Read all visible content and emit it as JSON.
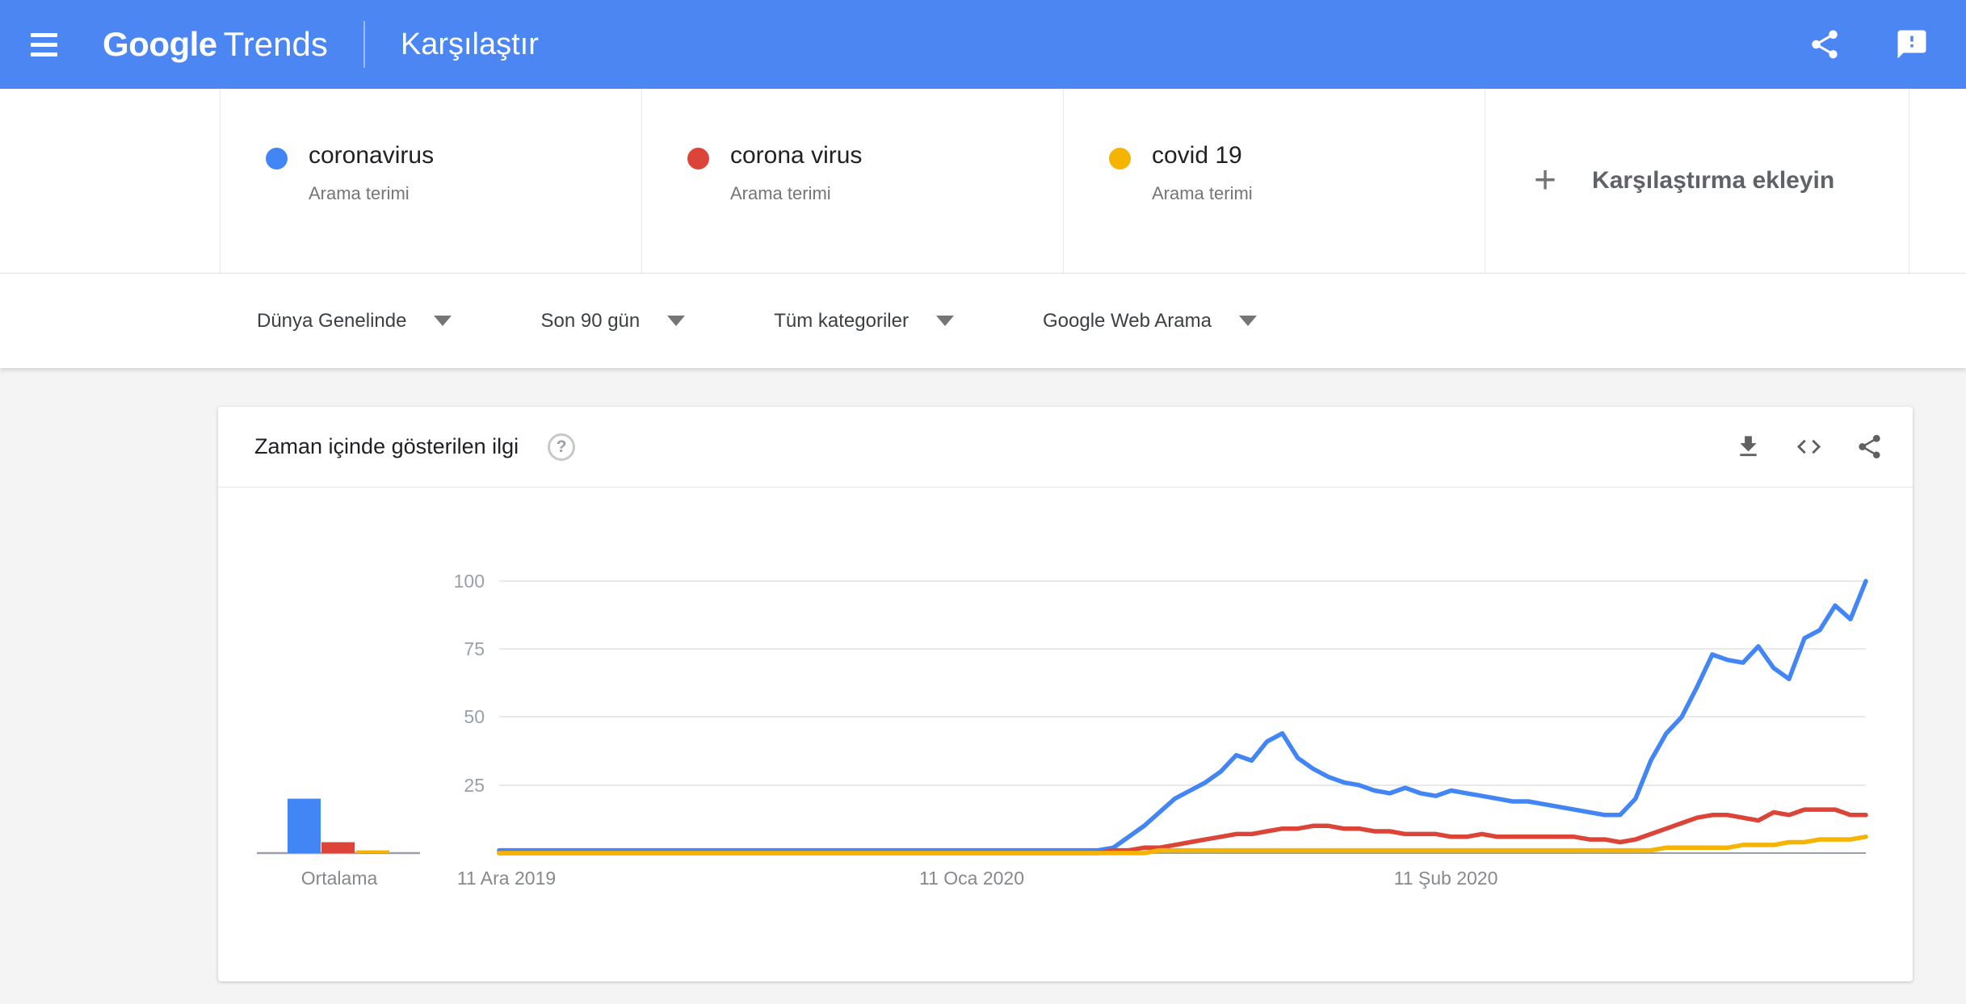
{
  "header": {
    "logo_primary": "Google",
    "logo_secondary": "Trends",
    "page_title": "Karşılaştır",
    "icons": {
      "menu": "hamburger-menu-icon",
      "share": "share-icon",
      "feedback": "feedback-icon"
    }
  },
  "compare_terms": [
    {
      "term": "coronavirus",
      "type_label": "Arama terimi",
      "color": "#4285F4"
    },
    {
      "term": "corona virus",
      "type_label": "Arama terimi",
      "color": "#DB4437"
    },
    {
      "term": "covid 19",
      "type_label": "Arama terimi",
      "color": "#F4B400"
    }
  ],
  "add_comparison": {
    "plus_glyph": "+",
    "label": "Karşılaştırma ekleyin"
  },
  "filters": [
    {
      "label": "Dünya Genelinde"
    },
    {
      "label": "Son 90 gün"
    },
    {
      "label": "Tüm kategoriler"
    },
    {
      "label": "Google Web Arama"
    }
  ],
  "chart_card": {
    "title": "Zaman içinde gösterilen ilgi",
    "help_glyph": "?",
    "icons": {
      "download": "download-icon",
      "embed": "embed-code-icon",
      "share": "share-icon"
    }
  },
  "chart_data": {
    "type": "line",
    "title": "Zaman içinde gösterilen ilgi",
    "n_points": 90,
    "x_tick_labels": [
      "11 Ara 2019",
      "11 Oca 2020",
      "11 Şub 2020"
    ],
    "y_ticks": [
      25,
      50,
      75,
      100
    ],
    "ylim": [
      0,
      100
    ],
    "grid": true,
    "series": [
      {
        "name": "coronavirus",
        "color": "#4285F4",
        "values": [
          1,
          1,
          1,
          1,
          1,
          1,
          1,
          1,
          1,
          1,
          1,
          1,
          1,
          1,
          1,
          1,
          1,
          1,
          1,
          1,
          1,
          1,
          1,
          1,
          1,
          1,
          1,
          1,
          1,
          1,
          1,
          1,
          1,
          1,
          1,
          1,
          1,
          1,
          1,
          1,
          2,
          6,
          10,
          15,
          20,
          23,
          26,
          30,
          36,
          34,
          41,
          44,
          35,
          31,
          28,
          26,
          25,
          23,
          22,
          24,
          22,
          21,
          23,
          22,
          21,
          20,
          19,
          19,
          18,
          17,
          16,
          15,
          14,
          14,
          20,
          34,
          44,
          50,
          61,
          73,
          71,
          70,
          76,
          68,
          64,
          79,
          82,
          91,
          86,
          100
        ]
      },
      {
        "name": "corona virus",
        "color": "#DB4437",
        "values": [
          0,
          0,
          0,
          0,
          0,
          0,
          0,
          0,
          0,
          0,
          0,
          0,
          0,
          0,
          0,
          0,
          0,
          0,
          0,
          0,
          0,
          0,
          0,
          0,
          0,
          0,
          0,
          0,
          0,
          0,
          0,
          0,
          0,
          0,
          0,
          0,
          0,
          0,
          0,
          0,
          1,
          1,
          2,
          2,
          3,
          4,
          5,
          6,
          7,
          7,
          8,
          9,
          9,
          10,
          10,
          9,
          9,
          8,
          8,
          7,
          7,
          7,
          6,
          6,
          7,
          6,
          6,
          6,
          6,
          6,
          6,
          5,
          5,
          4,
          5,
          7,
          9,
          11,
          13,
          14,
          14,
          13,
          12,
          15,
          14,
          16,
          16,
          16,
          14,
          14
        ]
      },
      {
        "name": "covid 19",
        "color": "#F4B400",
        "values": [
          0,
          0,
          0,
          0,
          0,
          0,
          0,
          0,
          0,
          0,
          0,
          0,
          0,
          0,
          0,
          0,
          0,
          0,
          0,
          0,
          0,
          0,
          0,
          0,
          0,
          0,
          0,
          0,
          0,
          0,
          0,
          0,
          0,
          0,
          0,
          0,
          0,
          0,
          0,
          0,
          0,
          0,
          0,
          1,
          1,
          1,
          1,
          1,
          1,
          1,
          1,
          1,
          1,
          1,
          1,
          1,
          1,
          1,
          1,
          1,
          1,
          1,
          1,
          1,
          1,
          1,
          1,
          1,
          1,
          1,
          1,
          1,
          1,
          1,
          1,
          1,
          2,
          2,
          2,
          2,
          2,
          3,
          3,
          3,
          4,
          4,
          5,
          5,
          5,
          6
        ]
      }
    ],
    "average_chart": {
      "type": "bar",
      "label": "Ortalama",
      "values": [
        {
          "name": "coronavirus",
          "value": 20
        },
        {
          "name": "corona virus",
          "value": 4
        },
        {
          "name": "covid 19",
          "value": 1
        }
      ]
    }
  }
}
